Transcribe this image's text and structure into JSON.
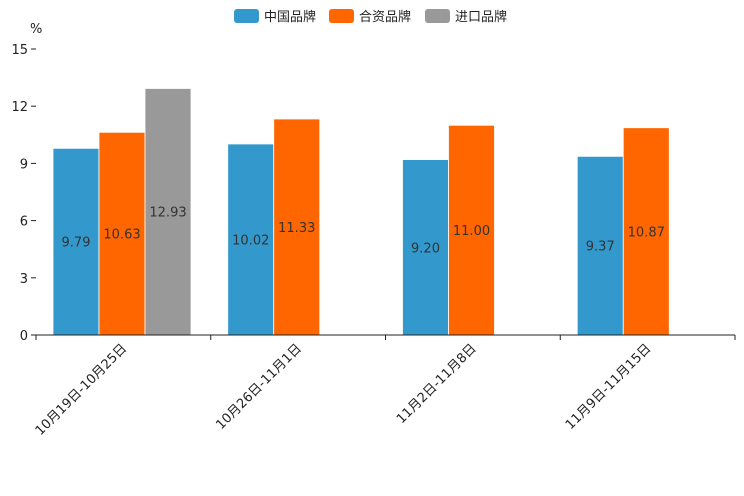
{
  "chart_data": {
    "type": "bar",
    "unit_label": "%",
    "categories": [
      "10月19日-10月25日",
      "10月26日-11月1日",
      "11月2日-11月8日",
      "11月9日-11月15日"
    ],
    "series": [
      {
        "name": "中国品牌",
        "color": "#3399CC",
        "values": [
          9.79,
          10.02,
          9.2,
          9.37
        ],
        "labels": [
          "9.79",
          "10.02",
          "9.20",
          "9.37"
        ]
      },
      {
        "name": "合资品牌",
        "color": "#FF6600",
        "values": [
          10.63,
          11.33,
          11.0,
          10.87
        ],
        "labels": [
          "10.63",
          "11.33",
          "11.00",
          "10.87"
        ]
      },
      {
        "name": "进口品牌",
        "color": "#999999",
        "values": [
          12.93,
          null,
          null,
          null
        ],
        "labels": [
          "12.93",
          null,
          null,
          null
        ]
      }
    ],
    "ylim": [
      0,
      15
    ],
    "yticks": [
      0,
      3,
      6,
      9,
      12,
      15
    ],
    "ytick_labels": [
      "0",
      "3",
      "6",
      "9",
      "12",
      "15"
    ],
    "legend_position": "top-center",
    "grid": false
  }
}
